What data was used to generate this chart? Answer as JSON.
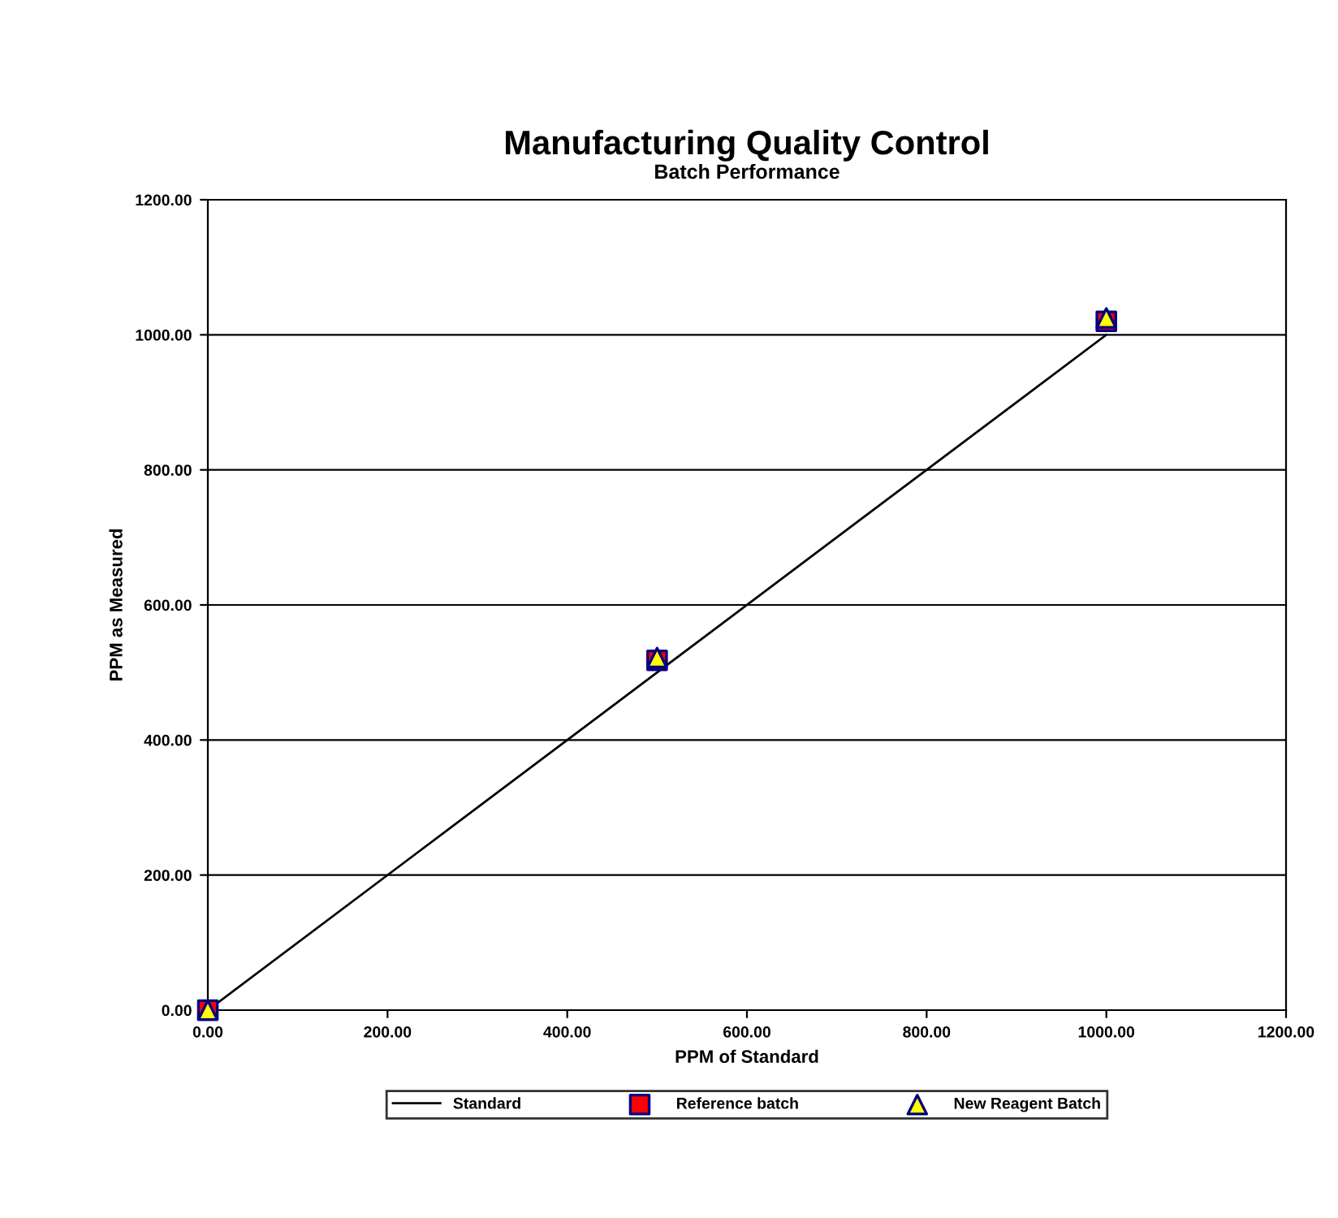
{
  "chart_data": {
    "type": "scatter",
    "title": "Manufacturing Quality Control",
    "subtitle": "Batch Performance",
    "xlabel": "PPM of Standard",
    "ylabel": "PPM as Measured",
    "x": [
      0,
      500,
      1000
    ],
    "series": [
      {
        "name": "Standard",
        "type": "line",
        "color": "#000000",
        "marker": "none",
        "values": [
          0,
          500,
          1000
        ]
      },
      {
        "name": "Reference batch",
        "color": "#ff0000",
        "marker": "square",
        "values": [
          0,
          518,
          1020
        ]
      },
      {
        "name": "New Reagent Batch",
        "color": "#ffff00",
        "marker": "triangle",
        "values": [
          0,
          522,
          1025
        ]
      }
    ],
    "xlim": [
      0,
      1200
    ],
    "ylim": [
      0,
      1200
    ],
    "xticks": [
      {
        "value": 0,
        "label": "0.00"
      },
      {
        "value": 200,
        "label": "200.00"
      },
      {
        "value": 400,
        "label": "400.00"
      },
      {
        "value": 600,
        "label": "600.00"
      },
      {
        "value": 800,
        "label": "800.00"
      },
      {
        "value": 1000,
        "label": "1000.00"
      },
      {
        "value": 1200,
        "label": "1200.00"
      }
    ],
    "yticks": [
      {
        "value": 0,
        "label": "0.00"
      },
      {
        "value": 200,
        "label": "200.00"
      },
      {
        "value": 400,
        "label": "400.00"
      },
      {
        "value": 600,
        "label": "600.00"
      },
      {
        "value": 800,
        "label": "800.00"
      },
      {
        "value": 1000,
        "label": "1000.00"
      },
      {
        "value": 1200,
        "label": "1200.00"
      }
    ],
    "grid": "y",
    "legend": "bottom"
  }
}
